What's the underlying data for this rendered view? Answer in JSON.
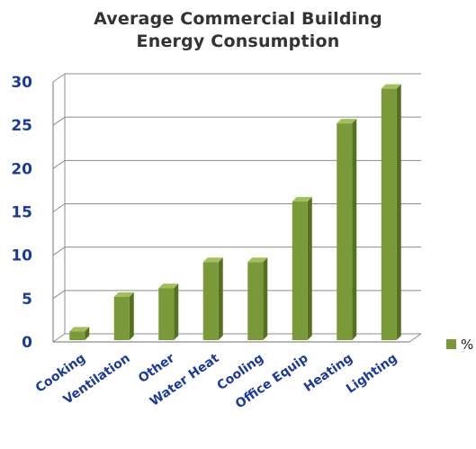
{
  "chart_data": {
    "type": "bar",
    "title_lines": [
      "Average Commercial Building",
      "Energy Consumption"
    ],
    "categories": [
      "Cooking",
      "Ventilation",
      "Other",
      "Water Heat",
      "Cooling",
      "Office Equip",
      "Heating",
      "Lighting"
    ],
    "series": [
      {
        "name": "%",
        "values": [
          1,
          5,
          6,
          9,
          9,
          16,
          25,
          29
        ]
      }
    ],
    "ylim": [
      0,
      30
    ],
    "yticks": [
      0,
      5,
      10,
      15,
      20,
      25,
      30
    ],
    "grid": true,
    "legend_position": "right",
    "colors": {
      "bar_front": "#7a9a3a",
      "bar_side": "#55701f",
      "bar_top": "#a2c05a",
      "axis_labels": "#1a3a9c",
      "grid": "#8c8c8c",
      "title": "#333333"
    }
  }
}
